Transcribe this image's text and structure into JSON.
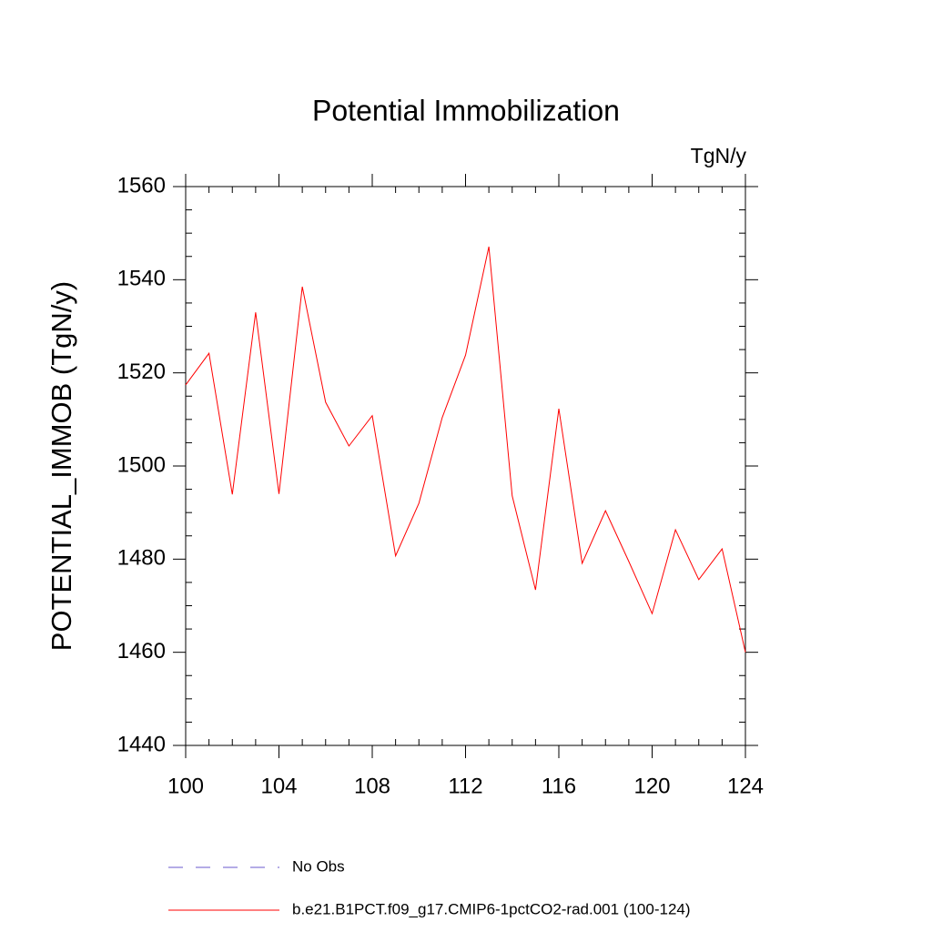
{
  "chart_data": {
    "type": "line",
    "title": "Potential Immobilization",
    "units": "TgN/y",
    "y_label": "POTENTIAL_IMMOB  (TgN/y)",
    "x": [
      100,
      101,
      102,
      103,
      104,
      105,
      106,
      107,
      108,
      109,
      110,
      111,
      112,
      113,
      114,
      115,
      116,
      117,
      118,
      119,
      120,
      121,
      122,
      123,
      124
    ],
    "series": [
      {
        "name": "No Obs",
        "color": "#6a5acd",
        "dashed": true,
        "values": [
          null,
          null,
          null,
          null,
          null,
          null,
          null,
          null,
          null,
          null,
          null,
          null,
          null,
          null,
          null,
          null,
          null,
          null,
          null,
          null,
          null,
          null,
          null,
          null,
          null
        ]
      },
      {
        "name": "b.e21.B1PCT.f09_g17.CMIP6-1pctCO2-rad.001 (100-124)",
        "color": "#ff0000",
        "dashed": false,
        "values": [
          1517.4,
          1524.2,
          1493.9,
          1533,
          1494,
          1538.5,
          1513.7,
          1504.3,
          1510.8,
          1480.7,
          1492,
          1510.4,
          1523.8,
          1547.1,
          1493.6,
          1473.4,
          1512.3,
          1479.1,
          1490.4,
          1479.5,
          1468.3,
          1486.3,
          1475.6,
          1482.2,
          1460
        ]
      }
    ],
    "xlim": [
      100,
      124
    ],
    "xticks": [
      100,
      104,
      108,
      112,
      116,
      120,
      124
    ],
    "xminorticks": [
      101,
      102,
      103,
      105,
      106,
      107,
      109,
      110,
      111,
      113,
      114,
      115,
      117,
      118,
      119,
      121,
      122,
      123
    ],
    "ylim": [
      1440,
      1560
    ],
    "yticks": [
      1440,
      1460,
      1480,
      1500,
      1520,
      1540,
      1560
    ],
    "yminorticks": [
      1445,
      1450,
      1455,
      1465,
      1470,
      1475,
      1485,
      1490,
      1495,
      1505,
      1510,
      1515,
      1525,
      1530,
      1535,
      1545,
      1550,
      1555
    ]
  }
}
